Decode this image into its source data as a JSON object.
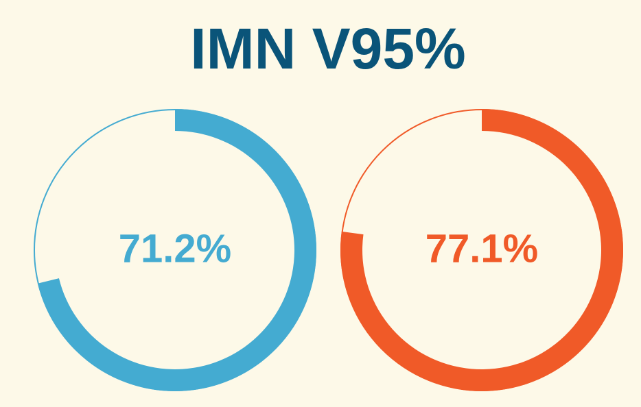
{
  "chart_data": {
    "type": "gauge",
    "title": "IMN V95%",
    "values": [
      71.2,
      77.1
    ],
    "value_labels": [
      "71.2%",
      "77.1%"
    ],
    "colors": [
      "#44abd1",
      "#f05a28"
    ],
    "ylim": [
      0,
      100
    ]
  }
}
